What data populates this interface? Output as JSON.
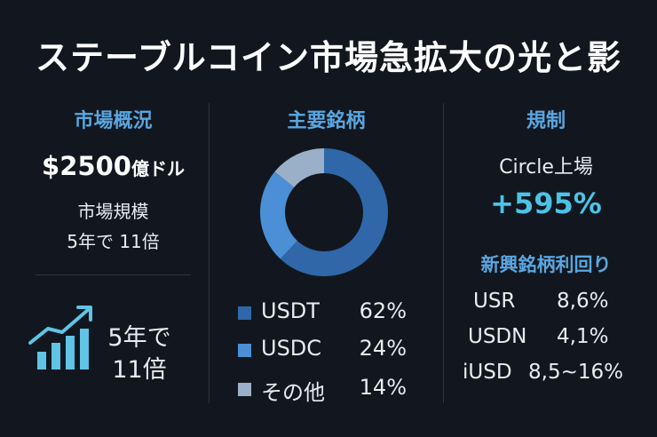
{
  "title": "ステーブルコイン市場急拡大の光と影",
  "market": {
    "header": "市場概況",
    "size_value": "$2500",
    "size_unit": "億ドル",
    "size_label": "市場規模",
    "growth_note": "5年で 11倍",
    "growth_line1": "5年で",
    "growth_line2": "11倍",
    "growth_icon": "growth-chart-icon"
  },
  "tokens": {
    "header": "主要銘柄",
    "chart_data": {
      "type": "pie",
      "categories": [
        "USDT",
        "USDC",
        "その他"
      ],
      "values": [
        62,
        24,
        14
      ],
      "colors": [
        "#2f67a8",
        "#4b8fd6",
        "#9ab0c8"
      ]
    },
    "legend": [
      {
        "name": "USDT",
        "pct": "62%",
        "color": "#2f67a8"
      },
      {
        "name": "USDC",
        "pct": "24%",
        "color": "#4b8fd6"
      },
      {
        "name": "その他",
        "pct": "14%",
        "color": "#9ab0c8"
      }
    ]
  },
  "regulation": {
    "header": "規制",
    "circle_label": "Circle上場",
    "circle_change": "+595%",
    "emerging_header": "新興銘柄利回り",
    "emerging": [
      {
        "name": "USR",
        "rate": "8,6%"
      },
      {
        "name": "USDN",
        "rate": "4,1%"
      },
      {
        "name": "iUSD",
        "rate": "8,5~16%"
      }
    ]
  },
  "colors": {
    "background": "#12171f",
    "accent_blue": "#5aa6e0",
    "accent_cyan": "#4cc3e6"
  }
}
